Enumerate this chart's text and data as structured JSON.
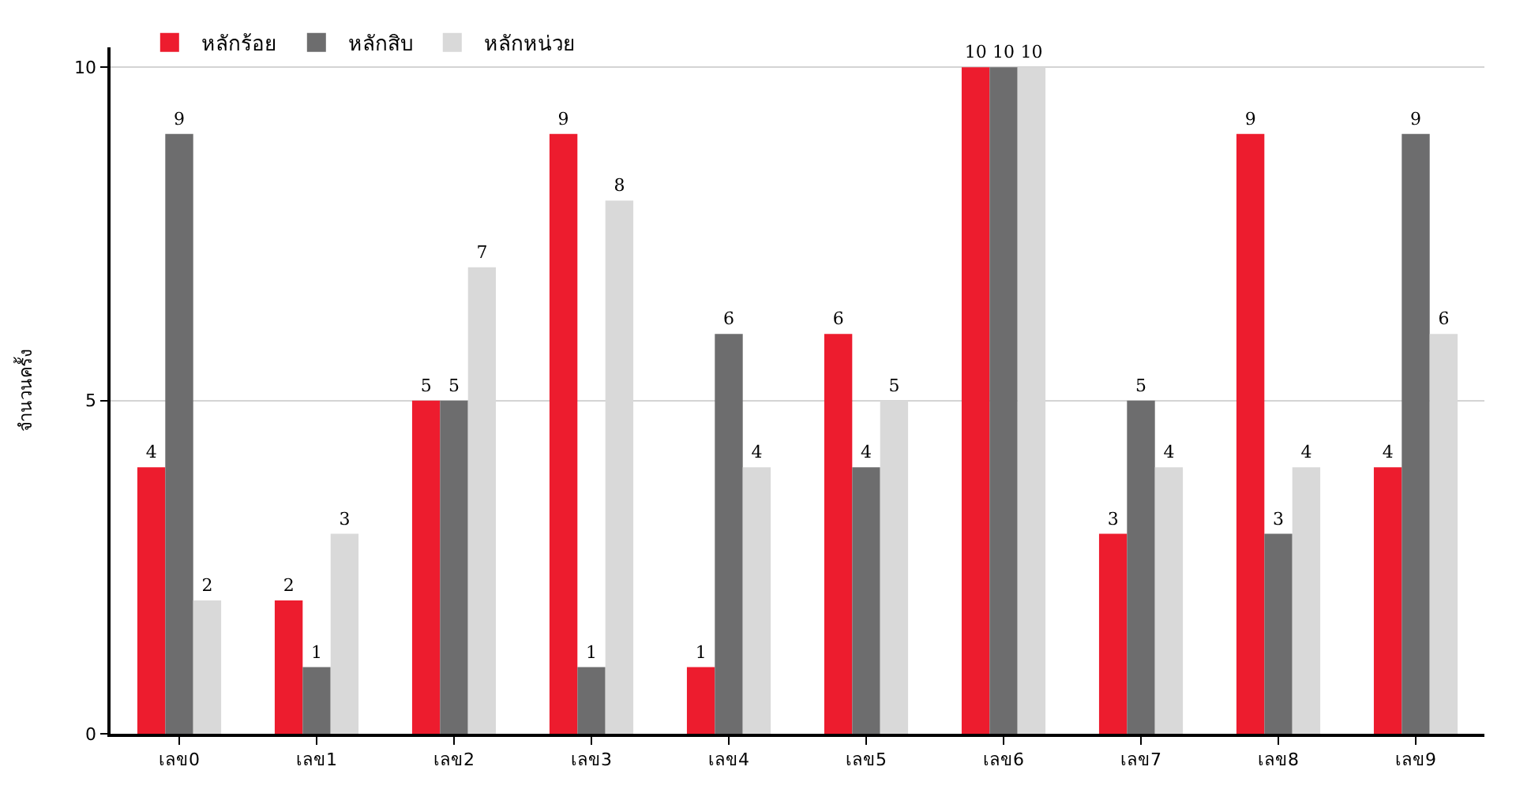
{
  "chart_data": {
    "type": "bar",
    "ylabel": "จำนวนครั้ง",
    "categories": [
      "เลข0",
      "เลข1",
      "เลข2",
      "เลข3",
      "เลข4",
      "เลข5",
      "เลข6",
      "เลข7",
      "เลข8",
      "เลข9"
    ],
    "series": [
      {
        "name": "หลักร้อย",
        "color": "#ed1c2e",
        "values": [
          4,
          2,
          5,
          9,
          1,
          6,
          10,
          3,
          9,
          4
        ]
      },
      {
        "name": "หลักสิบ",
        "color": "#6d6d6e",
        "values": [
          9,
          1,
          5,
          1,
          6,
          4,
          10,
          5,
          3,
          9
        ]
      },
      {
        "name": "หลักหน่วย",
        "color": "#d9d9d9",
        "values": [
          2,
          3,
          7,
          8,
          4,
          5,
          10,
          4,
          4,
          6
        ]
      }
    ],
    "ylim": [
      0,
      10.3
    ],
    "yticks": [
      0,
      5,
      10
    ],
    "grid": "y",
    "legend": "top left",
    "data_labels": true
  }
}
